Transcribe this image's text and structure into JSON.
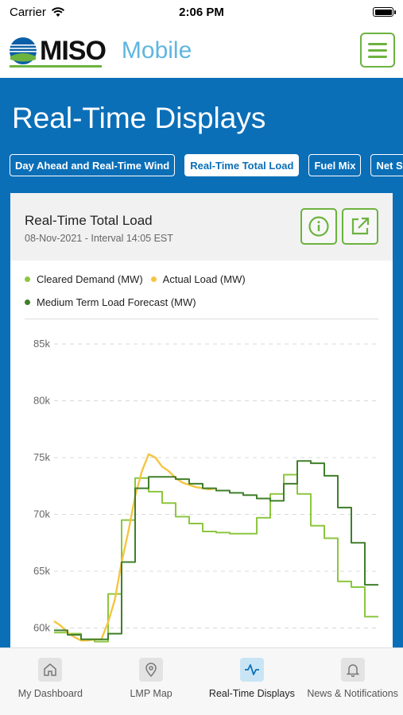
{
  "status_bar": {
    "carrier": "Carrier",
    "time": "2:06 PM"
  },
  "header": {
    "logo_text": "MISO",
    "app_name": "Mobile",
    "menu_icon": "hamburger-menu-icon"
  },
  "page_title": "Real-Time Displays",
  "tabs": [
    {
      "label": "Day Ahead and Real-Time Wind",
      "active": false
    },
    {
      "label": "Real-Time Total Load",
      "active": true
    },
    {
      "label": "Fuel Mix",
      "active": false
    },
    {
      "label": "Net Sche",
      "active": false
    }
  ],
  "card": {
    "title": "Real-Time Total Load",
    "subtitle": "08-Nov-2021 - Interval 14:05 EST",
    "info_icon": "info-icon",
    "open_icon": "external-link-icon"
  },
  "colors": {
    "brand_blue": "#0b6fb8",
    "accent_green": "#6cb33f",
    "cleared_demand": "#8cc63f",
    "actual_load": "#f5c542",
    "forecast": "#3f7f2a"
  },
  "chart_data": {
    "type": "line",
    "title": "",
    "xlabel": "",
    "ylabel": "",
    "ylim": [
      58000,
      87000
    ],
    "yticks": [
      "85k",
      "80k",
      "75k",
      "70k",
      "65k",
      "60k"
    ],
    "ytick_values": [
      85000,
      80000,
      75000,
      70000,
      65000,
      60000
    ],
    "grid": true,
    "legend": "top",
    "legend_entries": [
      "Cleared Demand (MW)",
      "Actual Load (MW)",
      "Medium Term Load Forecast (MW)"
    ],
    "series": [
      {
        "name": "Cleared Demand (MW)",
        "type": "step",
        "x": [
          0,
          1,
          2,
          3,
          4,
          5,
          6,
          7,
          8,
          9,
          10,
          11,
          12,
          13,
          14,
          15,
          16,
          17,
          18,
          19,
          20,
          21,
          22,
          23,
          24
        ],
        "values": [
          59600,
          59500,
          59000,
          58800,
          63000,
          69500,
          73200,
          72000,
          71000,
          69800,
          69200,
          68500,
          68400,
          68300,
          68300,
          69700,
          71800,
          73500,
          71800,
          69000,
          67900,
          64100,
          63600,
          61000,
          61000
        ]
      },
      {
        "name": "Actual Load (MW)",
        "type": "line",
        "x": [
          0,
          0.5,
          1,
          1.5,
          2,
          2.5,
          3,
          3.5,
          4,
          4.5,
          5,
          5.5,
          6,
          6.5,
          7,
          7.5,
          8,
          8.5,
          9,
          9.5,
          10,
          10.5,
          11,
          11.5,
          12
        ],
        "values": [
          60600,
          60200,
          59600,
          59200,
          58900,
          58900,
          59000,
          59000,
          60500,
          62500,
          65800,
          68500,
          71600,
          73800,
          75300,
          75000,
          74200,
          73800,
          73200,
          72800,
          72600,
          72400,
          72300,
          72200,
          72300
        ]
      },
      {
        "name": "Medium Term Load Forecast (MW)",
        "type": "step",
        "x": [
          0,
          1,
          2,
          3,
          4,
          5,
          6,
          7,
          8,
          9,
          10,
          11,
          12,
          13,
          14,
          15,
          16,
          17,
          18,
          19,
          20,
          21,
          22,
          23,
          24
        ],
        "values": [
          59800,
          59400,
          59000,
          59000,
          59500,
          65800,
          72300,
          73300,
          73300,
          73100,
          72700,
          72300,
          72100,
          71900,
          71700,
          71400,
          71200,
          72700,
          74700,
          74500,
          73400,
          70600,
          67500,
          63800,
          63800
        ]
      }
    ]
  },
  "bottom_nav": [
    {
      "label": "My Dashboard",
      "icon": "home-icon",
      "active": false
    },
    {
      "label": "LMP Map",
      "icon": "map-pin-icon",
      "active": false
    },
    {
      "label": "Real-Time Displays",
      "icon": "pulse-icon",
      "active": true
    },
    {
      "label": "News & Notifications",
      "icon": "bell-icon",
      "active": false
    }
  ]
}
